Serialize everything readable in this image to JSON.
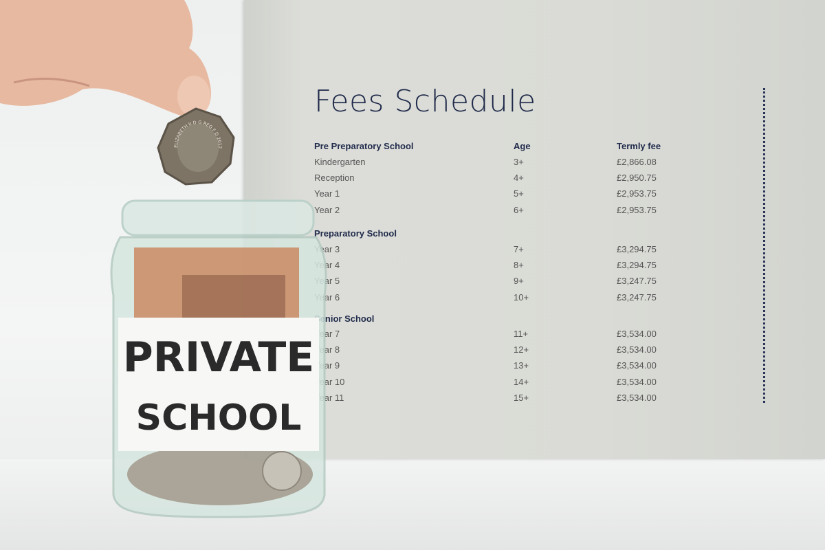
{
  "schedule": {
    "title": "Fees Schedule",
    "headers": {
      "section": "Pre Preparatory School",
      "age": "Age",
      "fee": "Termly fee"
    },
    "pre_prep": [
      {
        "name": "Kindergarten",
        "age": "3+",
        "fee": "£2,866.08"
      },
      {
        "name": "Reception",
        "age": "4+",
        "fee": "£2,950.75"
      },
      {
        "name": "Year 1",
        "age": "5+",
        "fee": "£2,953.75"
      },
      {
        "name": "Year 2",
        "age": "6+",
        "fee": "£2,953.75"
      }
    ],
    "prep_heading": "Preparatory School",
    "prep": [
      {
        "name": "Year 3",
        "age": "7+",
        "fee": "£3,294.75"
      },
      {
        "name": "Year 4",
        "age": "8+",
        "fee": "£3,294.75"
      },
      {
        "name": "Year 5",
        "age": "9+",
        "fee": "£3,247.75"
      },
      {
        "name": "Year 6",
        "age": "10+",
        "fee": "£3,247.75"
      }
    ],
    "senior_heading": "Senior School",
    "senior": [
      {
        "name": "Year 7",
        "age": "11+",
        "fee": "£3,534.00"
      },
      {
        "name": "Year 8",
        "age": "12+",
        "fee": "£3,534.00"
      },
      {
        "name": "Year 9",
        "age": "13+",
        "fee": "£3,534.00"
      },
      {
        "name": "Year 10",
        "age": "14+",
        "fee": "£3,534.00"
      },
      {
        "name": "Year 11",
        "age": "15+",
        "fee": "£3,534.00"
      }
    ]
  },
  "jar_label": {
    "line1": "PRIVATE",
    "line2": "SCHOOL"
  },
  "coin_inscription": "ELIZABETH II D G REG F D 2012",
  "colors": {
    "board": "#dadbd6",
    "ink": "#1f2a4a",
    "glass": "#cfe3dc",
    "banknote": "#c98a63"
  }
}
